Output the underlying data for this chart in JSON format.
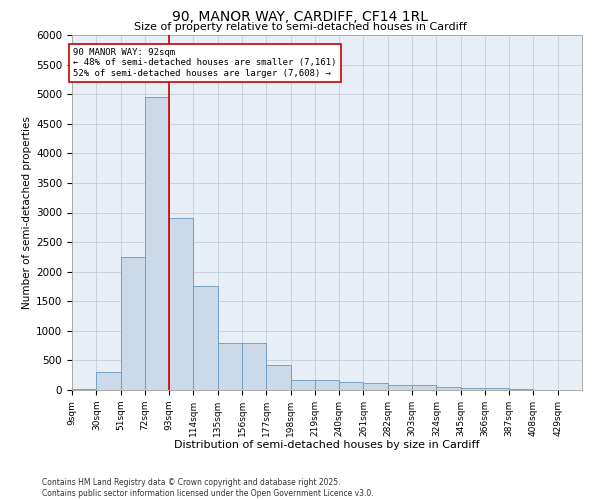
{
  "title_line1": "90, MANOR WAY, CARDIFF, CF14 1RL",
  "title_line2": "Size of property relative to semi-detached houses in Cardiff",
  "xlabel": "Distribution of semi-detached houses by size in Cardiff",
  "ylabel": "Number of semi-detached properties",
  "footnote": "Contains HM Land Registry data © Crown copyright and database right 2025.\nContains public sector information licensed under the Open Government Licence v3.0.",
  "bin_labels": [
    "9sqm",
    "30sqm",
    "51sqm",
    "72sqm",
    "93sqm",
    "114sqm",
    "135sqm",
    "156sqm",
    "177sqm",
    "198sqm",
    "219sqm",
    "240sqm",
    "261sqm",
    "282sqm",
    "303sqm",
    "324sqm",
    "345sqm",
    "366sqm",
    "387sqm",
    "408sqm",
    "429sqm"
  ],
  "bin_edges": [
    9,
    30,
    51,
    72,
    93,
    114,
    135,
    156,
    177,
    198,
    219,
    240,
    261,
    282,
    303,
    324,
    345,
    366,
    387,
    408,
    429
  ],
  "bar_heights": [
    20,
    300,
    2250,
    4950,
    2900,
    1750,
    800,
    800,
    420,
    175,
    175,
    130,
    110,
    90,
    80,
    50,
    35,
    30,
    10,
    8,
    0
  ],
  "bar_color": "#ccd9e8",
  "bar_edge_color": "#6699bb",
  "vline_x": 93,
  "vline_color": "#cc0000",
  "annotation_title": "90 MANOR WAY: 92sqm",
  "annotation_line1": "← 48% of semi-detached houses are smaller (7,161)",
  "annotation_line2": "52% of semi-detached houses are larger (7,608) →",
  "annotation_box_color": "#cc0000",
  "ylim": [
    0,
    6000
  ],
  "yticks": [
    0,
    500,
    1000,
    1500,
    2000,
    2500,
    3000,
    3500,
    4000,
    4500,
    5000,
    5500,
    6000
  ],
  "grid_color": "#c5cdd8",
  "background_color": "#e8eef5"
}
